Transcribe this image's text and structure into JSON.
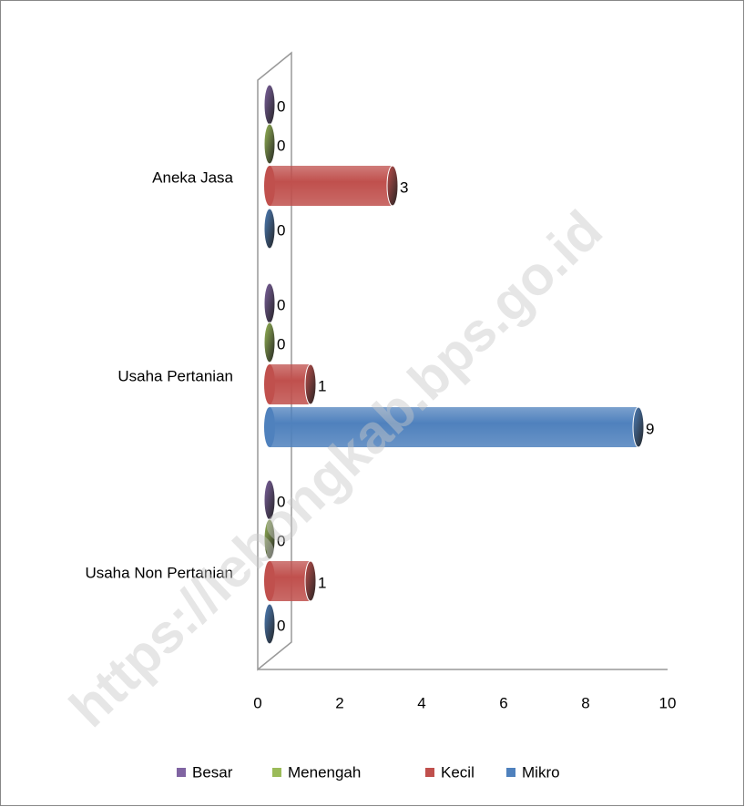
{
  "chart_data": {
    "type": "bar3d-horizontal",
    "categories": [
      "Usaha Non Pertanian",
      "Usaha Pertanian",
      "Aneka Jasa"
    ],
    "series": [
      {
        "name": "Besar",
        "color": "#8064a2",
        "values": [
          0,
          0,
          0
        ]
      },
      {
        "name": "Menengah",
        "color": "#9bbb59",
        "values": [
          0,
          0,
          0
        ]
      },
      {
        "name": "Kecil",
        "color": "#c0504d",
        "values": [
          1,
          1,
          3
        ]
      },
      {
        "name": "Mikro",
        "color": "#4f81bd",
        "values": [
          0,
          9,
          0
        ]
      }
    ],
    "xlim": [
      0,
      10
    ],
    "xticks": [
      0,
      2,
      4,
      6,
      8,
      10
    ],
    "legend": "bottom",
    "watermark": "https://lebongkab.bps.go.id"
  }
}
